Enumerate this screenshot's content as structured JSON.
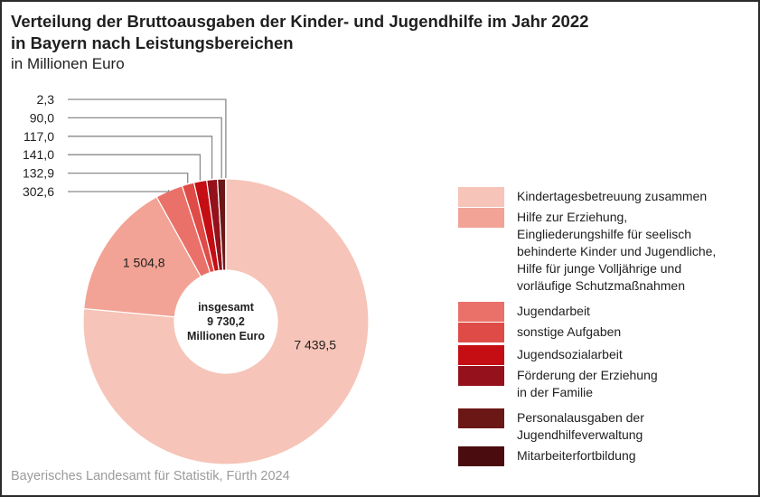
{
  "chart_data": {
    "type": "pie",
    "variant": "donut",
    "title": "Verteilung der Bruttoausgaben der Kinder- und Jugendhilfe im Jahr 2022 in Bayern nach Leistungsbereichen",
    "title_lines": [
      "Verteilung der Bruttoausgaben der Kinder- und Jugendhilfe im Jahr 2022",
      "in Bayern nach Leistungsbereichen"
    ],
    "subtitle": "in Millionen Euro",
    "center_label": [
      "insgesamt",
      "9 730,2",
      "Millionen Euro"
    ],
    "total": 9730.2,
    "start_angle_deg": 0,
    "direction": "clockwise",
    "legend_position": "right",
    "slices": [
      {
        "name": "Kindertagesbetreuung zusammen",
        "legend_label": "Kindertagesbetreuung zusammen",
        "value": 7439.5,
        "label": "7 439,5",
        "color": "#f6c4b8",
        "label_mode": "inside"
      },
      {
        "name": "Hilfe zur Erziehung, Eingliederungshilfe für seelisch behinderte Kinder und Jugendliche, Hilfe für junge Volljährige und vorläufige Schutzmaßnahmen",
        "legend_label": "Hilfe zur Erziehung,\nEingliederungshilfe für seelisch\nbehinderte Kinder und Jugendliche,\nHilfe für junge Volljährige und\nvorläufige Schutzmaßnahmen",
        "value": 1504.8,
        "label": "1 504,8",
        "color": "#f2a396",
        "label_mode": "inside"
      },
      {
        "name": "Jugendarbeit",
        "legend_label": "Jugendarbeit",
        "value": 302.6,
        "label": "302,6",
        "color": "#ea7169",
        "label_mode": "leader"
      },
      {
        "name": "sonstige Aufgaben",
        "legend_label": "sonstige Aufgaben",
        "value": 132.9,
        "label": "132,9",
        "color": "#df4b47",
        "label_mode": "leader"
      },
      {
        "name": "Jugendsozialarbeit",
        "legend_label": "Jugendsozialarbeit",
        "value": 141.0,
        "label": "141,0",
        "color": "#c40e14",
        "label_mode": "leader"
      },
      {
        "name": "Förderung der Erziehung in der Familie",
        "legend_label": "Förderung der Erziehung\nin der Familie",
        "value": 117.0,
        "label": "117,0",
        "color": "#95111b",
        "label_mode": "leader"
      },
      {
        "name": "Personalausgaben der Jugendhilfeverwaltung",
        "legend_label": "Personalausgaben der\nJugendhilfeverwaltung",
        "value": 90.0,
        "label": "90,0",
        "color": "#6b1716",
        "label_mode": "leader"
      },
      {
        "name": "Mitarbeiterfortbildung",
        "legend_label": "Mitarbeiterfortbildung",
        "value": 2.3,
        "label": "2,3",
        "color": "#4a0c0f",
        "label_mode": "leader"
      }
    ],
    "source": "Bayerisches Landesamt für Statistik, Fürth 2024"
  }
}
